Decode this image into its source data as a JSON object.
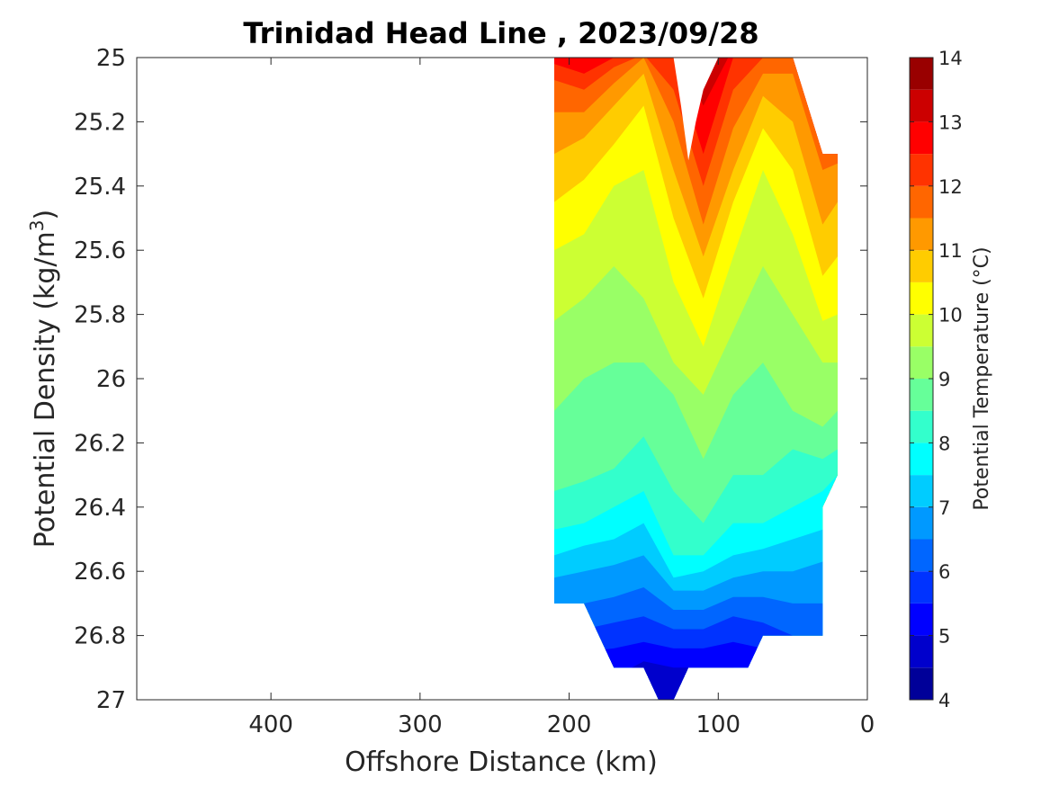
{
  "chart_data": {
    "type": "contour",
    "title": "Trinidad Head Line , 2023/09/28",
    "xlabel": "Offshore Distance (km)",
    "ylabel": {
      "main": "Potential Density (kg/m",
      "sup": "3",
      "end": ")"
    },
    "xlim": [
      490,
      0
    ],
    "ylim": [
      25,
      27
    ],
    "x_ticks": [
      400,
      300,
      200,
      100,
      0
    ],
    "y_ticks": [
      25,
      25.2,
      25.4,
      25.6,
      25.8,
      26,
      26.2,
      26.4,
      26.6,
      26.8,
      27
    ],
    "y_tick_labels": [
      "25",
      "25.2",
      "25.4",
      "25.6",
      "25.8",
      "26",
      "26.2",
      "26.4",
      "26.6",
      "26.8",
      "27"
    ],
    "colorbar": {
      "label": "Potential Temperature (°C)",
      "range": [
        4,
        14
      ],
      "ticks": [
        4,
        5,
        6,
        7,
        8,
        9,
        10,
        11,
        12,
        13,
        14
      ],
      "levels": [
        4,
        4.5,
        5,
        5.5,
        6,
        6.5,
        7,
        7.5,
        8,
        8.5,
        9,
        9.5,
        10,
        10.5,
        11,
        11.5,
        12,
        12.5,
        13,
        13.5,
        14
      ],
      "colormap": "jet"
    },
    "stations_x": [
      210,
      190,
      170,
      150,
      130,
      110,
      90,
      70,
      50,
      30,
      20
    ],
    "isotherms": [
      {
        "temp": 13.5,
        "y": [
          25.0,
          24.95,
          24.95,
          24.9,
          24.9,
          24.95,
          24.95,
          24.95,
          24.9,
          24.9,
          24.9
        ]
      },
      {
        "temp": 13,
        "y": [
          25.0,
          24.99,
          24.98,
          24.95,
          24.95,
          25.15,
          24.97,
          24.95,
          24.9,
          24.9,
          24.9
        ]
      },
      {
        "temp": 12.5,
        "y": [
          25.02,
          25.05,
          25.0,
          24.97,
          25.0,
          25.3,
          25.0,
          24.97,
          24.95,
          24.9,
          24.9
        ]
      },
      {
        "temp": 12,
        "y": [
          25.07,
          25.1,
          25.03,
          24.99,
          25.1,
          25.4,
          25.1,
          25.0,
          24.97,
          25.2,
          25.3
        ]
      },
      {
        "temp": 11.5,
        "y": [
          25.17,
          25.17,
          25.08,
          25.0,
          25.2,
          25.52,
          25.22,
          25.05,
          25.05,
          25.35,
          25.33
        ]
      },
      {
        "temp": 11,
        "y": [
          25.3,
          25.25,
          25.15,
          25.05,
          25.35,
          25.62,
          25.35,
          25.12,
          25.2,
          25.52,
          25.45
        ]
      },
      {
        "temp": 10.5,
        "y": [
          25.45,
          25.38,
          25.27,
          25.15,
          25.5,
          25.75,
          25.45,
          25.22,
          25.35,
          25.68,
          25.62
        ]
      },
      {
        "temp": 10,
        "y": [
          25.6,
          25.55,
          25.4,
          25.35,
          25.7,
          25.9,
          25.62,
          25.35,
          25.55,
          25.82,
          25.8
        ]
      },
      {
        "temp": 9.5,
        "y": [
          25.82,
          25.75,
          25.65,
          25.75,
          25.95,
          26.05,
          25.85,
          25.65,
          25.8,
          25.95,
          25.95
        ]
      },
      {
        "temp": 9,
        "y": [
          26.1,
          26.0,
          25.95,
          25.95,
          26.05,
          26.25,
          26.05,
          25.95,
          26.1,
          26.15,
          26.1
        ]
      },
      {
        "temp": 8.5,
        "y": [
          26.35,
          26.32,
          26.28,
          26.18,
          26.35,
          26.45,
          26.3,
          26.3,
          26.22,
          26.25,
          26.22
        ]
      },
      {
        "temp": 8,
        "y": [
          26.47,
          26.45,
          26.4,
          26.35,
          26.55,
          26.55,
          26.45,
          26.45,
          26.4,
          26.35,
          26.3
        ]
      },
      {
        "temp": 7.5,
        "y": [
          26.55,
          26.52,
          26.5,
          26.45,
          26.62,
          26.6,
          26.55,
          26.53,
          26.5,
          26.47,
          26.42
        ]
      },
      {
        "temp": 7,
        "y": [
          26.62,
          26.6,
          26.58,
          26.55,
          26.66,
          26.66,
          26.62,
          26.6,
          26.6,
          26.57,
          26.55
        ]
      },
      {
        "temp": 6.5,
        "y": [
          26.7,
          26.7,
          26.68,
          26.65,
          26.72,
          26.72,
          26.68,
          26.68,
          26.7,
          26.7,
          26.7
        ]
      },
      {
        "temp": 6,
        "y": [
          26.78,
          26.78,
          26.76,
          26.74,
          26.78,
          26.78,
          26.74,
          26.76,
          26.8,
          26.8,
          26.8
        ]
      },
      {
        "temp": 5.5,
        "y": [
          26.85,
          26.85,
          26.84,
          26.82,
          26.84,
          26.84,
          26.82,
          26.84,
          26.85,
          26.85,
          26.85
        ]
      },
      {
        "temp": 5,
        "y": [
          26.95,
          26.95,
          26.93,
          26.88,
          26.9,
          26.9,
          26.9,
          26.92,
          26.95,
          26.95,
          26.95
        ]
      }
    ],
    "mask_top": {
      "x": [
        130,
        125,
        120,
        115,
        110,
        105,
        100
      ],
      "y": [
        25.0,
        25.15,
        25.32,
        25.2,
        25.1,
        25.05,
        25.0
      ]
    },
    "data_boundary": {
      "x": [
        210,
        190,
        180,
        170,
        150,
        140,
        130,
        120,
        110,
        80,
        70,
        50,
        30,
        30,
        20,
        20,
        30,
        50,
        50,
        100,
        130,
        210,
        210,
        200,
        190,
        170,
        150,
        140,
        120,
        90,
        80,
        70,
        50,
        30
      ],
      "y": [
        26.7,
        26.7,
        26.8,
        26.9,
        26.9,
        27.0,
        27.0,
        26.9,
        26.9,
        26.8,
        26.8,
        26.8,
        26.8,
        26.4,
        26.3,
        25.3,
        25.3,
        25.0,
        25.0,
        25.0,
        25.0,
        25.0,
        26.7,
        26.7,
        26.8,
        26.9,
        26.9,
        27.0,
        27.0,
        26.9,
        26.9,
        26.8,
        26.8,
        26.8
      ],
      "description_only": false
    }
  }
}
